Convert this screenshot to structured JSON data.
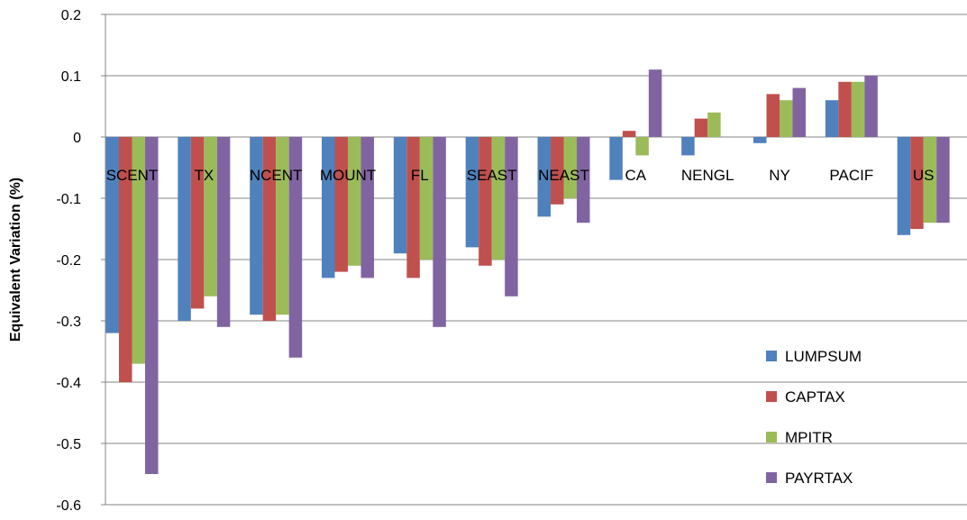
{
  "chart_data": {
    "type": "bar",
    "title": "",
    "xlabel": "",
    "ylabel": "Equivalent Variation (%)",
    "ylim": [
      -0.6,
      0.2
    ],
    "yticks": [
      0.2,
      0.1,
      0,
      -0.1,
      -0.2,
      -0.3,
      -0.4,
      -0.5,
      -0.6
    ],
    "ytick_labels": [
      "0.2",
      "0.1",
      "0",
      "-0.1",
      "-0.2",
      "-0.3",
      "-0.4",
      "-0.5",
      "-0.6"
    ],
    "grid": true,
    "legend_position": "bottom-right",
    "categories": [
      "SCENT",
      "TX",
      "NCENT",
      "MOUNT",
      "FL",
      "SEAST",
      "NEAST",
      "CA",
      "NENGL",
      "NY",
      "PACIF",
      "US"
    ],
    "series": [
      {
        "name": "LUMPSUM",
        "color": "#4F81BD",
        "values": [
          -0.32,
          -0.3,
          -0.29,
          -0.23,
          -0.19,
          -0.18,
          -0.13,
          -0.07,
          -0.03,
          -0.01,
          0.06,
          -0.16
        ]
      },
      {
        "name": "CAPTAX",
        "color": "#C0504D",
        "values": [
          -0.4,
          -0.28,
          -0.3,
          -0.22,
          -0.23,
          -0.21,
          -0.11,
          0.01,
          0.03,
          0.07,
          0.09,
          -0.15
        ]
      },
      {
        "name": "MPITR",
        "color": "#9BBB59",
        "values": [
          -0.37,
          -0.26,
          -0.29,
          -0.21,
          -0.2,
          -0.2,
          -0.1,
          -0.03,
          0.04,
          0.06,
          0.09,
          -0.14
        ]
      },
      {
        "name": "PAYRTAX",
        "color": "#8064A2",
        "values": [
          -0.55,
          -0.31,
          -0.36,
          -0.23,
          -0.31,
          -0.26,
          -0.14,
          0.11,
          0.0,
          0.08,
          0.1,
          -0.14
        ]
      }
    ]
  }
}
